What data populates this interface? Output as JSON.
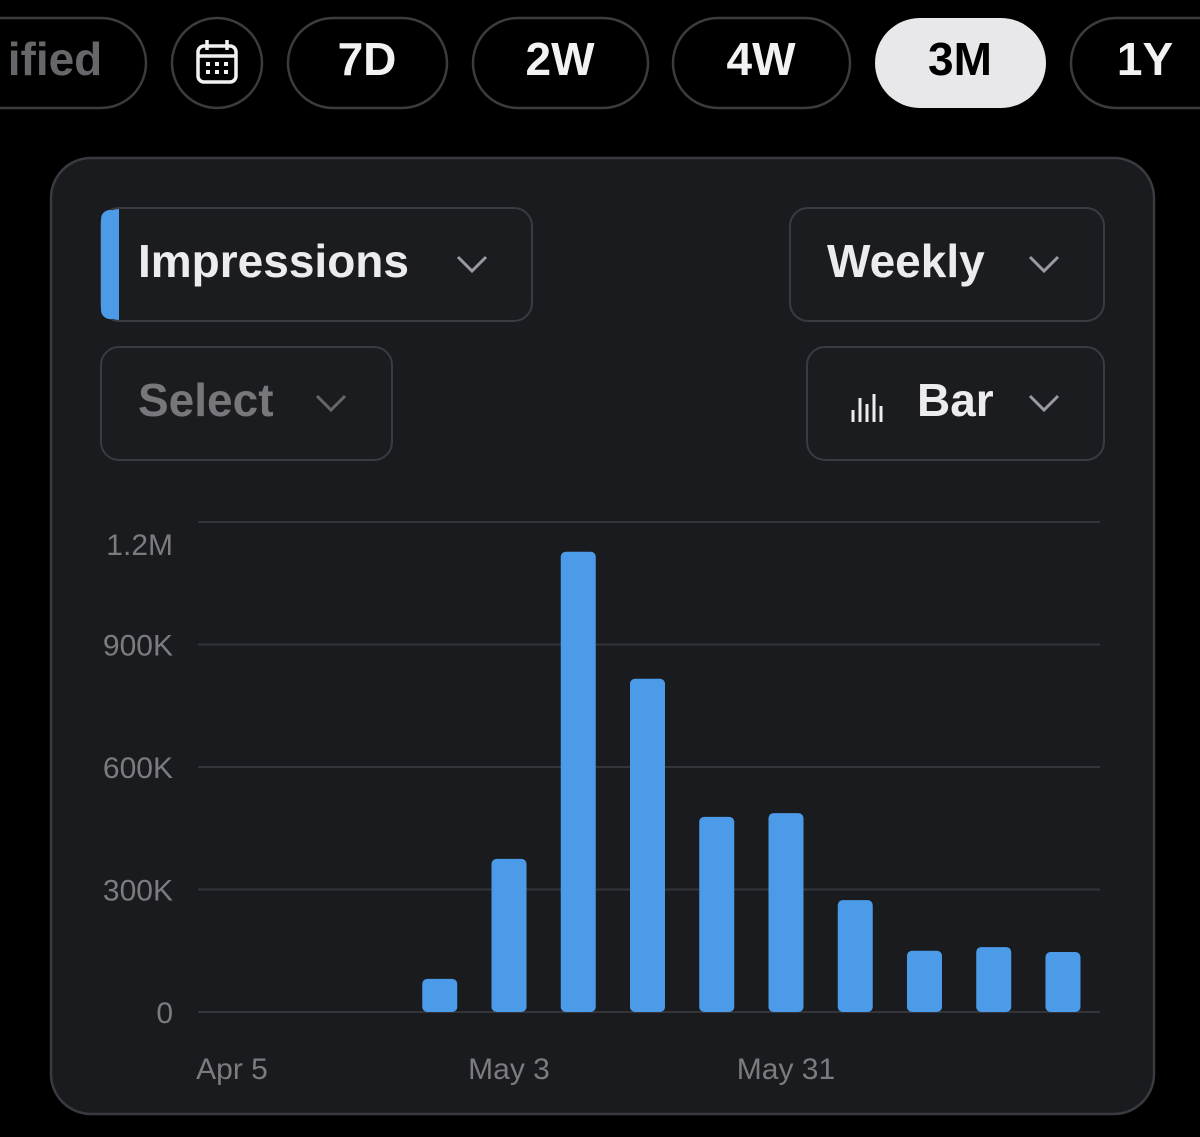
{
  "tabs": [
    "ified",
    "7D",
    "2W",
    "4W",
    "3M",
    "1Y"
  ],
  "controls": {
    "metric": "Impressions",
    "interval": "Weekly",
    "compare": "Select",
    "chart_type": "Bar"
  },
  "chart_data": {
    "type": "bar",
    "categories": [
      "Apr 5",
      null,
      null,
      null,
      "May 3",
      null,
      null,
      null,
      "May 31",
      null,
      null,
      null,
      null
    ],
    "values": [
      0,
      0,
      0,
      81000,
      375000,
      1127000,
      816000,
      478000,
      487000,
      274000,
      150000,
      159000,
      147000
    ],
    "color": "#4c9be8",
    "ylim": [
      0,
      1200000
    ],
    "yticks": [
      0,
      {
        "value": 300000,
        "label": "300K"
      },
      {
        "value": 600000,
        "label": "600K"
      },
      {
        "value": 900000,
        "label": "900K"
      },
      {
        "value": 1200000,
        "label": "1.2M"
      }
    ],
    "grid": true
  }
}
